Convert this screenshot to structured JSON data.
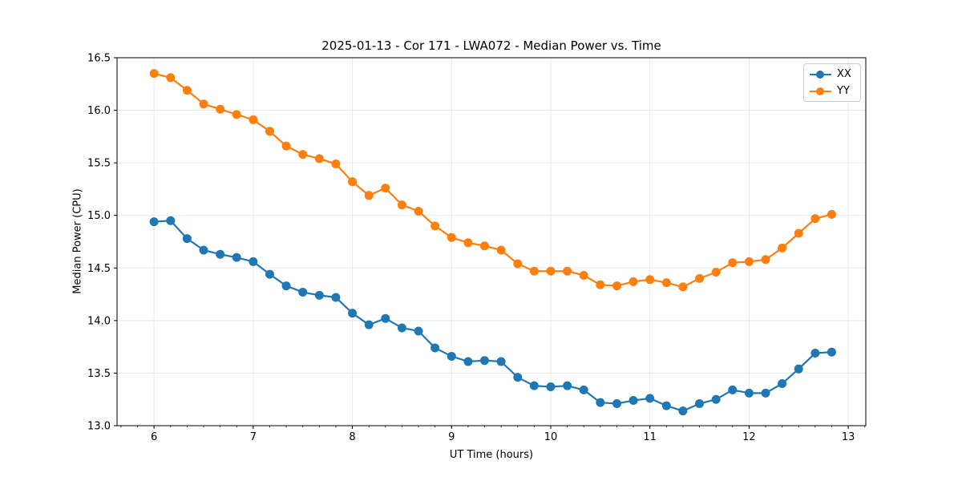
{
  "chart_data": {
    "type": "line",
    "title": "2025-01-13 - Cor 171 - LWA072 - Median Power vs. Time",
    "xlabel": "UT Time (hours)",
    "ylabel": "Median Power (CPU)",
    "xlim": [
      5.627,
      13.177
    ],
    "ylim": [
      13.0,
      16.5
    ],
    "xticks": [
      6,
      7,
      8,
      9,
      10,
      11,
      12,
      13
    ],
    "xtick_labels": [
      "6",
      "7",
      "8",
      "9",
      "10",
      "11",
      "12",
      "13"
    ],
    "yticks": [
      13.0,
      13.5,
      14.0,
      14.5,
      15.0,
      15.5,
      16.0,
      16.5
    ],
    "ytick_labels": [
      "13.0",
      "13.5",
      "14.0",
      "14.5",
      "15.0",
      "15.5",
      "16.0",
      "16.5"
    ],
    "x_minor_step": 0.166667,
    "grid": true,
    "grid_color": "#e8e8e8",
    "spine_color": "#000000",
    "legend_position": "upper right",
    "x": [
      6.0,
      6.167,
      6.333,
      6.5,
      6.667,
      6.833,
      7.0,
      7.167,
      7.333,
      7.5,
      7.667,
      7.833,
      8.0,
      8.167,
      8.333,
      8.5,
      8.667,
      8.833,
      9.0,
      9.167,
      9.333,
      9.5,
      9.667,
      9.833,
      10.0,
      10.167,
      10.333,
      10.5,
      10.667,
      10.833,
      11.0,
      11.167,
      11.333,
      11.5,
      11.667,
      11.833,
      12.0,
      12.167,
      12.333,
      12.5,
      12.667,
      12.833
    ],
    "series": [
      {
        "name": "XX",
        "color": "#1f77b4",
        "values": [
          14.94,
          14.95,
          14.78,
          14.67,
          14.63,
          14.6,
          14.56,
          14.44,
          14.33,
          14.27,
          14.24,
          14.22,
          14.07,
          13.96,
          14.02,
          13.93,
          13.9,
          13.74,
          13.66,
          13.61,
          13.62,
          13.61,
          13.46,
          13.38,
          13.37,
          13.38,
          13.34,
          13.22,
          13.21,
          13.24,
          13.26,
          13.19,
          13.14,
          13.21,
          13.25,
          13.34,
          13.31,
          13.31,
          13.4,
          13.54,
          13.69,
          13.7
        ]
      },
      {
        "name": "YY",
        "color": "#ff7f0e",
        "values": [
          16.35,
          16.31,
          16.19,
          16.06,
          16.01,
          15.96,
          15.91,
          15.8,
          15.66,
          15.58,
          15.54,
          15.49,
          15.32,
          15.19,
          15.26,
          15.1,
          15.04,
          14.9,
          14.79,
          14.74,
          14.71,
          14.67,
          14.54,
          14.47,
          14.47,
          14.47,
          14.43,
          14.34,
          14.33,
          14.37,
          14.39,
          14.36,
          14.32,
          14.4,
          14.46,
          14.55,
          14.56,
          14.58,
          14.69,
          14.83,
          14.97,
          15.01
        ]
      }
    ]
  }
}
